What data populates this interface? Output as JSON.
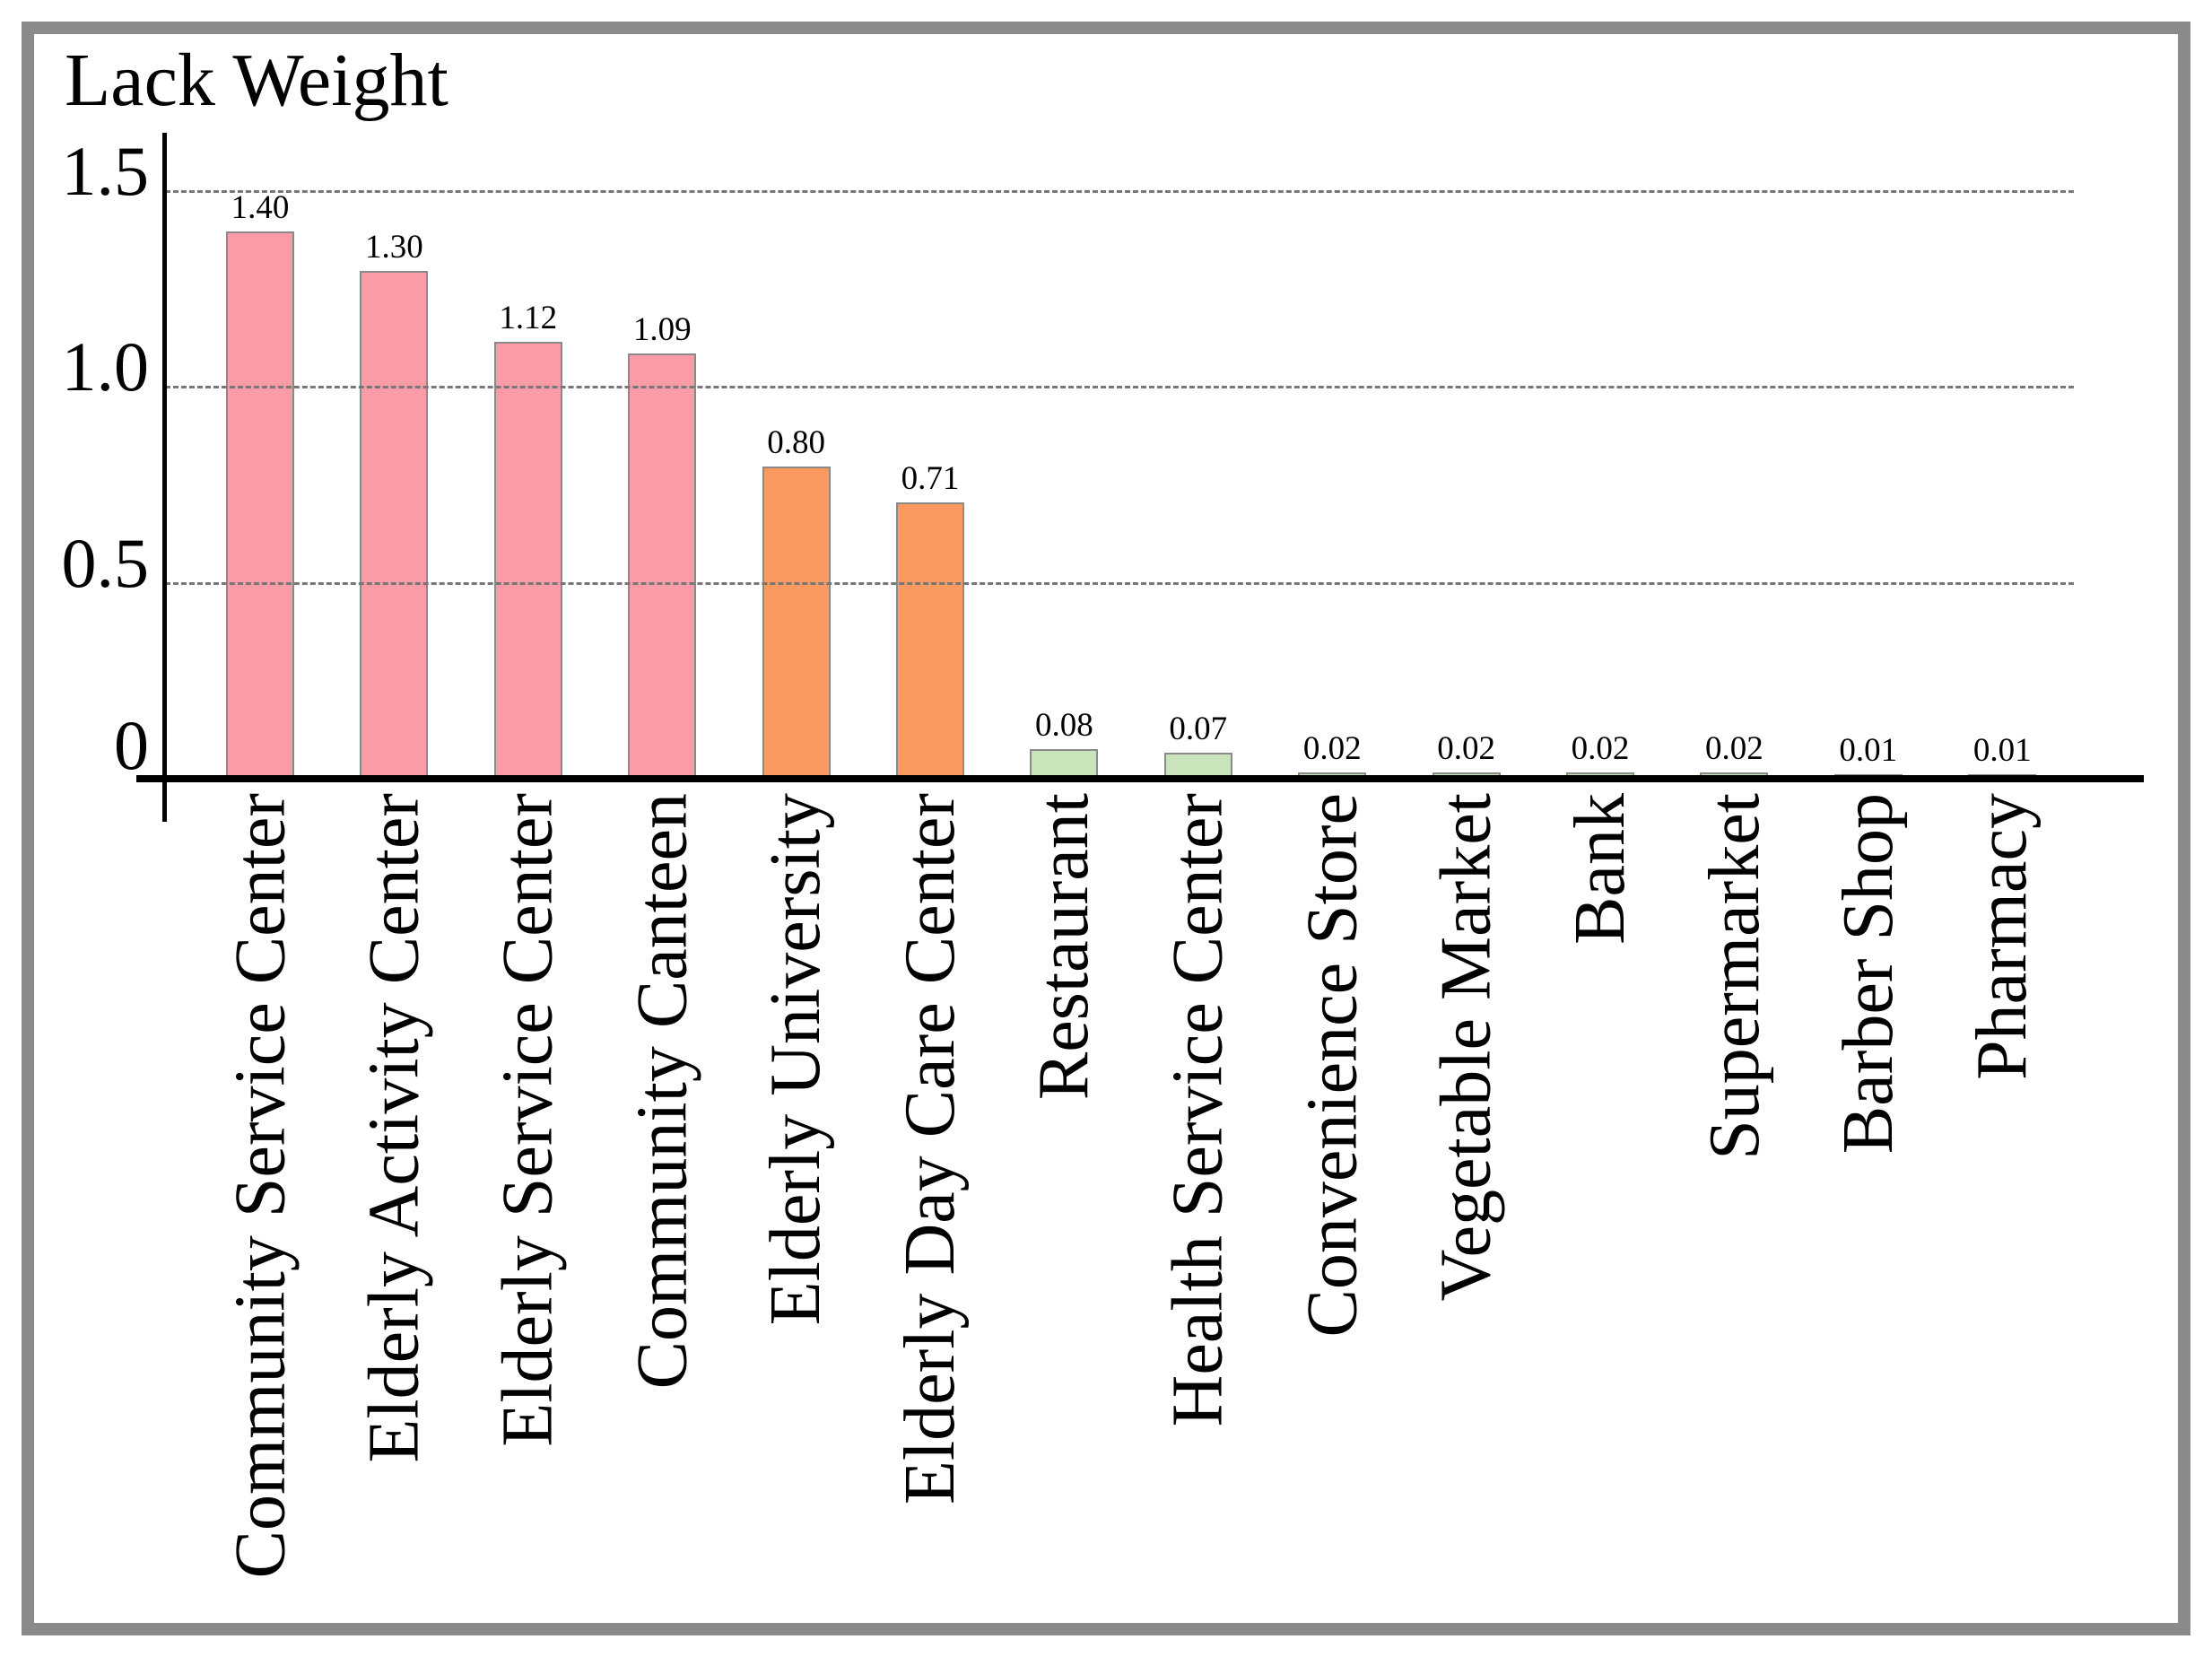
{
  "chart_data": {
    "type": "bar",
    "title": "Lack Weight",
    "xlabel": "",
    "ylabel": "Lack Weight",
    "categories": [
      "Community Service Center",
      "Elderly Activity Center",
      "Elderly Service Center",
      "Community Canteen",
      "Elderly University",
      "Elderly Day Care Center",
      "Restaurant",
      "Health Service Center",
      "Convenience Store",
      "Vegetable Market",
      "Bank",
      "Supermarket",
      "Barber Shop",
      "Pharmacy"
    ],
    "values": [
      1.4,
      1.3,
      1.12,
      1.09,
      0.8,
      0.71,
      0.08,
      0.07,
      0.02,
      0.02,
      0.02,
      0.02,
      0.01,
      0.01
    ],
    "value_labels": [
      "1.40",
      "1.30",
      "1.12",
      "1.09",
      "0.80",
      "0.71",
      "0.08",
      "0.07",
      "0.02",
      "0.02",
      "0.02",
      "0.02",
      "0.01",
      "0.01"
    ],
    "bar_colors": [
      "#FA9CA8",
      "#FA9CA8",
      "#FA9CA8",
      "#FA9CA8",
      "#FB9A60",
      "#FB9A60",
      "#C9E3BA",
      "#C9E3BA",
      "#C9E3BA",
      "#C9E3BA",
      "#C9E3BA",
      "#C9E3BA",
      "#C9E3BA",
      "#C9E3BA"
    ],
    "palette": {
      "high_group": "#FA9CA8",
      "medium_group": "#FB9A60",
      "low_group": "#C9E3BA",
      "bar_border": "#8a8a8a",
      "axis": "#000000",
      "gridline": "#777777",
      "frame_border": "#8a8a8a",
      "text": "#000000"
    },
    "y_ticks": [
      {
        "label": "1.5",
        "value": 1.5
      },
      {
        "label": "1.0",
        "value": 1.0
      },
      {
        "label": "0.5",
        "value": 0.5
      },
      {
        "label": "0",
        "value": 0.0
      }
    ],
    "ylim": [
      0,
      1.65
    ],
    "grid": {
      "horizontal_dashed_at": [
        0.5,
        1.0,
        1.5
      ],
      "vertical": false
    },
    "legend": "none",
    "x_label_rotation_degrees": 90
  }
}
